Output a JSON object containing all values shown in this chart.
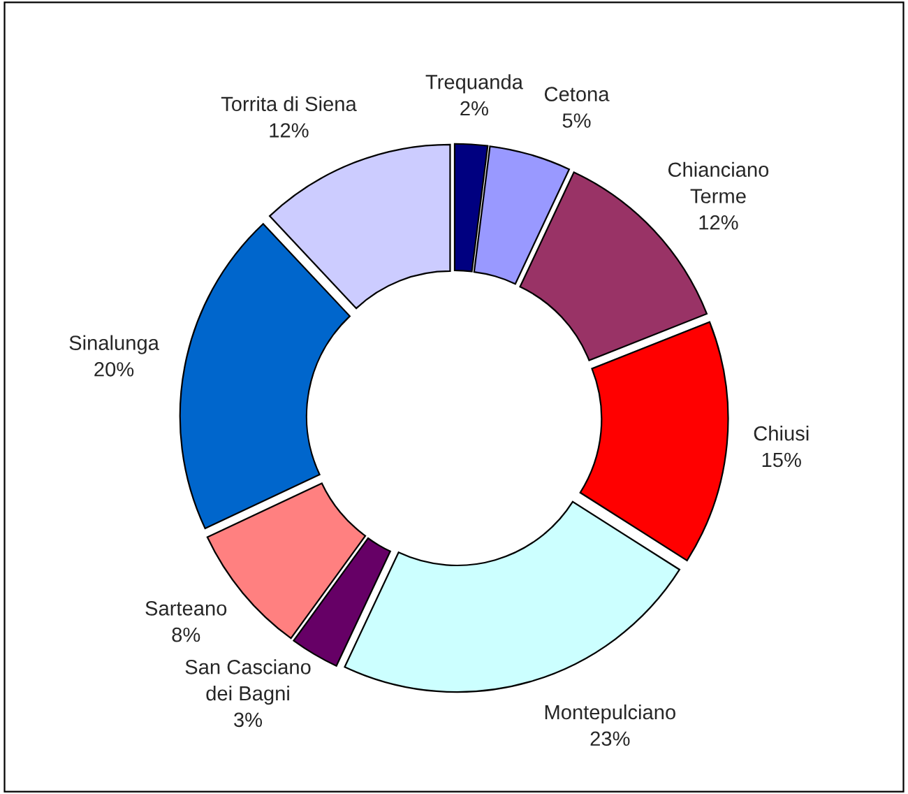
{
  "chart_data": {
    "type": "donut",
    "categories": [
      "Trequanda",
      "Cetona",
      "Chianciano\nTerme",
      "Chiusi",
      "Montepulciano",
      "San Casciano\ndei Bagni",
      "Sarteano",
      "Sinalunga",
      "Torrita di Siena"
    ],
    "values": [
      2,
      5,
      12,
      15,
      23,
      3,
      8,
      20,
      12
    ],
    "colors": [
      "#000080",
      "#9999ff",
      "#993366",
      "#ff0000",
      "#ccffff",
      "#660066",
      "#ff8080",
      "#0066cc",
      "#ccccff"
    ],
    "value_labels": [
      "2%",
      "5%",
      "12%",
      "15%",
      "23%",
      "3%",
      "8%",
      "20%",
      "12%"
    ],
    "legend": false
  }
}
